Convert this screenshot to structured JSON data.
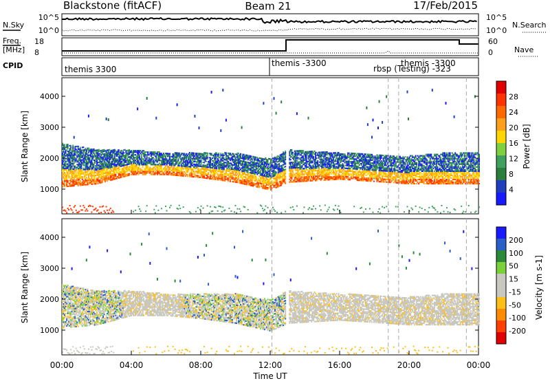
{
  "header": {
    "station": "Blackstone (fitACF)",
    "beam": "Beam 21",
    "date": "17/Feb/2015"
  },
  "left_labels": {
    "nsky": "N.Sky",
    "freq": "Freq.",
    "freq_unit": "[MHz]",
    "cpid": "CPID"
  },
  "right_labels": {
    "nsearch": "N.Search",
    "nave": "Nave"
  },
  "noise_panel": {
    "left_ticks": [
      "10^5",
      "10^0"
    ],
    "right_ticks": [
      "10^5",
      "10^0"
    ]
  },
  "freq_panel": {
    "left_ticks": [
      "18",
      "8"
    ],
    "right_ticks": [
      "60",
      "0"
    ]
  },
  "cpid_labels": [
    {
      "text": "themis 3300",
      "hour": 0.0
    },
    {
      "text": "themis -3300",
      "hour": 12.1
    },
    {
      "text": "rbsp (Testing) -323",
      "hour": 18.8
    },
    {
      "text": "themis -3300",
      "hour": 20.2
    }
  ],
  "colors": {
    "power_scale": [
      "#1a1aff",
      "#1f3fbf",
      "#2a7f3f",
      "#40a060",
      "#7fcf3f",
      "#ffd700",
      "#ff9f1a",
      "#ff6a00",
      "#ff3300",
      "#e00000"
    ],
    "velocity_scale": [
      "#1a1aff",
      "#2a5fc8",
      "#2a8a3a",
      "#7ad13a",
      "#c8c8c0",
      "#c8c8c0",
      "#ffbf1a",
      "#ff8c00",
      "#ff4000",
      "#e00000"
    ],
    "scatter_grey": "#c8c8c0"
  },
  "chart_data": [
    {
      "type": "heatmap",
      "name": "power",
      "ylabel": "Slant Range [km]",
      "ylim": [
        200,
        4600
      ],
      "y_ticks": [
        "1000",
        "2000",
        "3000",
        "4000"
      ],
      "colorbar_label": "Power [dB]",
      "colorbar_ticks": [
        "4",
        "8",
        "12",
        "16",
        "20",
        "24",
        "28"
      ],
      "band_lower_km": [
        [
          0,
          1100
        ],
        [
          2,
          1200
        ],
        [
          4,
          1500
        ],
        [
          6,
          1500
        ],
        [
          8,
          1400
        ],
        [
          10,
          1250
        ],
        [
          12,
          1000
        ],
        [
          13,
          1250
        ],
        [
          16,
          1350
        ],
        [
          20,
          1200
        ],
        [
          22,
          1200
        ],
        [
          24,
          1200
        ]
      ],
      "band_upper_km": [
        [
          0,
          2500
        ],
        [
          2,
          2300
        ],
        [
          4,
          2300
        ],
        [
          6,
          2200
        ],
        [
          8,
          2200
        ],
        [
          10,
          2200
        ],
        [
          12,
          2000
        ],
        [
          13,
          2300
        ],
        [
          16,
          2200
        ],
        [
          20,
          2100
        ],
        [
          22,
          2200
        ],
        [
          24,
          2200
        ]
      ]
    },
    {
      "type": "heatmap",
      "name": "velocity",
      "ylabel": "Slant Range [km]",
      "ylim": [
        200,
        4600
      ],
      "y_ticks": [
        "1000",
        "2000",
        "3000",
        "4000"
      ],
      "colorbar_label": "Velocity [m s-1]",
      "colorbar_ticks": [
        "200",
        "100",
        "50",
        "15",
        "-15",
        "-50",
        "-100",
        "-200"
      ],
      "x_ticks": [
        "00:00",
        "04:00",
        "08:00",
        "12:00",
        "16:00",
        "20:00",
        "00:00"
      ],
      "xlabel": "Time UT",
      "xlim": [
        0,
        24
      ]
    }
  ]
}
